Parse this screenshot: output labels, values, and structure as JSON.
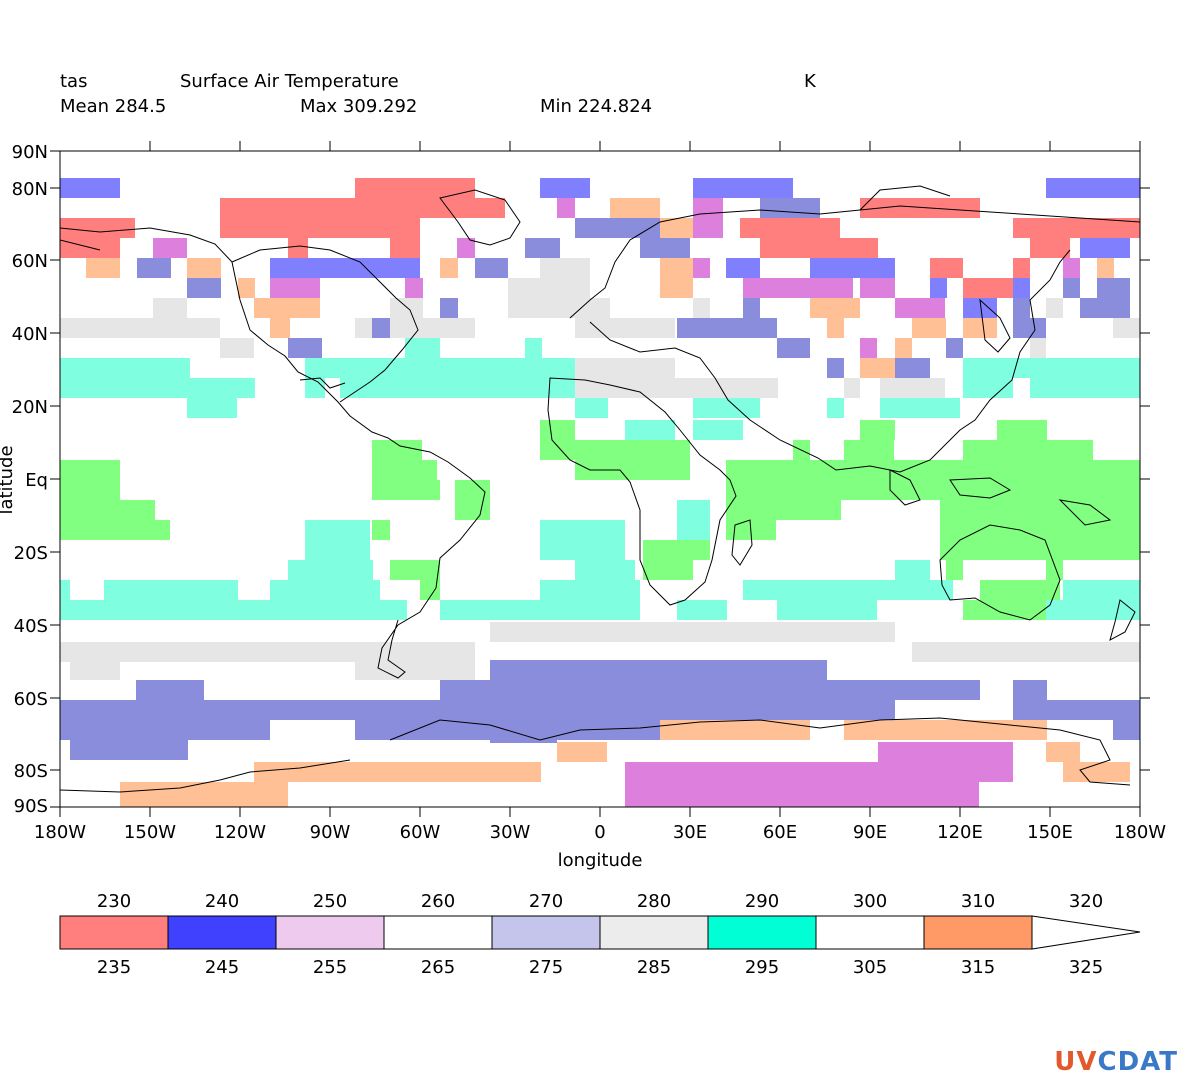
{
  "header": {
    "variable": "tas",
    "long_name": "Surface Air Temperature",
    "units": "K",
    "mean": "Mean 284.5",
    "max": "Max 309.292",
    "min": "Min 224.824"
  },
  "axes": {
    "xlabel": "longitude",
    "ylabel": "latitude",
    "xticks": [
      "180W",
      "150W",
      "120W",
      "90W",
      "60W",
      "30W",
      "0",
      "30E",
      "60E",
      "90E",
      "120E",
      "150E",
      "180W"
    ],
    "yticks": [
      "90N",
      "80N",
      "60N",
      "40N",
      "20N",
      "Eq",
      "20S",
      "40S",
      "60S",
      "80S",
      "90S"
    ]
  },
  "colorbar": {
    "top_labels": [
      "230",
      "240",
      "250",
      "260",
      "270",
      "280",
      "290",
      "300",
      "310",
      "320"
    ],
    "bottom_labels": [
      "235",
      "245",
      "255",
      "265",
      "275",
      "285",
      "295",
      "305",
      "315",
      "325"
    ],
    "colors": [
      "#ff7f7f",
      "#4040ff",
      "#eecbee",
      "#ffffff",
      "#c5c5ec",
      "#ececec",
      "#00ffd5",
      "#ffffff",
      "#ff9966",
      "#ffffff"
    ]
  },
  "map_colors": {
    "salmon": "#ff7f7f",
    "blue": "#8080ff",
    "magenta": "#dd7fdd",
    "gray": "#e6e6e6",
    "slate": "#8a8ddb",
    "cyan": "#7fffe0",
    "green": "#80ff80",
    "peach": "#ffc095"
  },
  "chart_data": {
    "type": "heatmap",
    "title": "Surface Air Temperature",
    "variable": "tas",
    "units": "K",
    "xlabel": "longitude",
    "ylabel": "latitude",
    "xlim": [
      -180,
      180
    ],
    "ylim": [
      -90,
      90
    ],
    "stats": {
      "mean": 284.5,
      "max": 309.292,
      "min": 224.824
    },
    "levels": [
      230,
      235,
      240,
      245,
      250,
      255,
      260,
      265,
      270,
      275,
      280,
      285,
      290,
      295,
      300,
      305,
      310,
      315,
      320,
      325
    ],
    "bands": [
      {
        "lat": [
          80,
          90
        ],
        "dominant": "white"
      },
      {
        "lat": [
          60,
          80
        ],
        "dominant": "cold (salmon / blue / magenta patches)"
      },
      {
        "lat": [
          40,
          60
        ],
        "dominant": "gray / slate / peach patches"
      },
      {
        "lat": [
          20,
          40
        ],
        "dominant": "cyan"
      },
      {
        "lat": [
          -20,
          20
        ],
        "dominant": "green"
      },
      {
        "lat": [
          -40,
          -20
        ],
        "dominant": "cyan"
      },
      {
        "lat": [
          -50,
          -40
        ],
        "dominant": "gray"
      },
      {
        "lat": [
          -70,
          -50
        ],
        "dominant": "slate"
      },
      {
        "lat": [
          -90,
          -70
        ],
        "dominant": "peach / magenta"
      }
    ]
  },
  "logo": {
    "part1": "UV",
    "part2": "CDAT"
  }
}
